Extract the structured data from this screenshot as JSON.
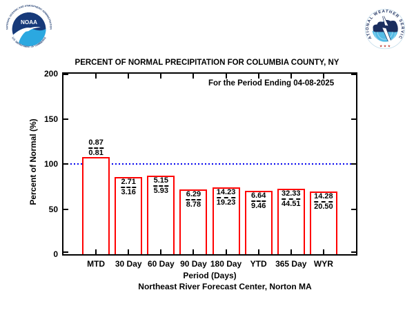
{
  "header": {
    "noaa_logo": {
      "acronym": "NOAA",
      "ring_top": "NATIONAL OCEANIC AND ATMOSPHERIC ADMINISTRATION",
      "ring_bottom": "U.S. DEPARTMENT OF COMMERCE"
    },
    "nws_logo": {
      "ring": "NATIONAL WEATHER SERVICE",
      "stars": "★ ★ ★"
    }
  },
  "chart_data": {
    "type": "bar",
    "title": "PERCENT OF NORMAL PRECIPITATION FOR COLUMBIA COUNTY, NY",
    "subtitle": "For the Period Ending 04-08-2025",
    "xlabel": "Period (Days)",
    "ylabel": "Percent of Normal (%)",
    "footer": "Northeast River Forecast Center, Norton MA",
    "ylim": [
      0,
      200
    ],
    "yticks": [
      0,
      50,
      100,
      150,
      200
    ],
    "reference_line": 100,
    "grid": false,
    "legend": false,
    "categories": [
      "MTD",
      "30 Day",
      "60 Day",
      "90 Day",
      "180 Day",
      "YTD",
      "365 Day",
      "WYR"
    ],
    "series": [
      {
        "name": "Percent of Normal",
        "values": [
          107.4,
          85.8,
          86.8,
          71.6,
          74.0,
          70.2,
          72.6,
          69.7
        ]
      }
    ],
    "bars": [
      {
        "category": "MTD",
        "observed": "0.87",
        "normal": "0.81",
        "percent": 107.4,
        "label_position": "above"
      },
      {
        "category": "30 Day",
        "observed": "2.71",
        "normal": "3.16",
        "percent": 85.8,
        "label_position": "inside"
      },
      {
        "category": "60 Day",
        "observed": "5.15",
        "normal": "5.93",
        "percent": 86.8,
        "label_position": "inside"
      },
      {
        "category": "90 Day",
        "observed": "6.29",
        "normal": "8.78",
        "percent": 71.6,
        "label_position": "inside"
      },
      {
        "category": "180 Day",
        "observed": "14.23",
        "normal": "19.23",
        "percent": 74.0,
        "label_position": "inside"
      },
      {
        "category": "YTD",
        "observed": "6.64",
        "normal": "9.46",
        "percent": 70.2,
        "label_position": "inside"
      },
      {
        "category": "365 Day",
        "observed": "32.33",
        "normal": "44.51",
        "percent": 72.6,
        "label_position": "inside"
      },
      {
        "category": "WYR",
        "observed": "14.28",
        "normal": "20.50",
        "percent": 69.7,
        "label_position": "inside"
      }
    ],
    "colors": {
      "bar_outline": "#ff0000",
      "bar_fill": "#ffffff",
      "reference_line": "#0000ee",
      "axis": "#000000",
      "text": "#000000"
    }
  }
}
